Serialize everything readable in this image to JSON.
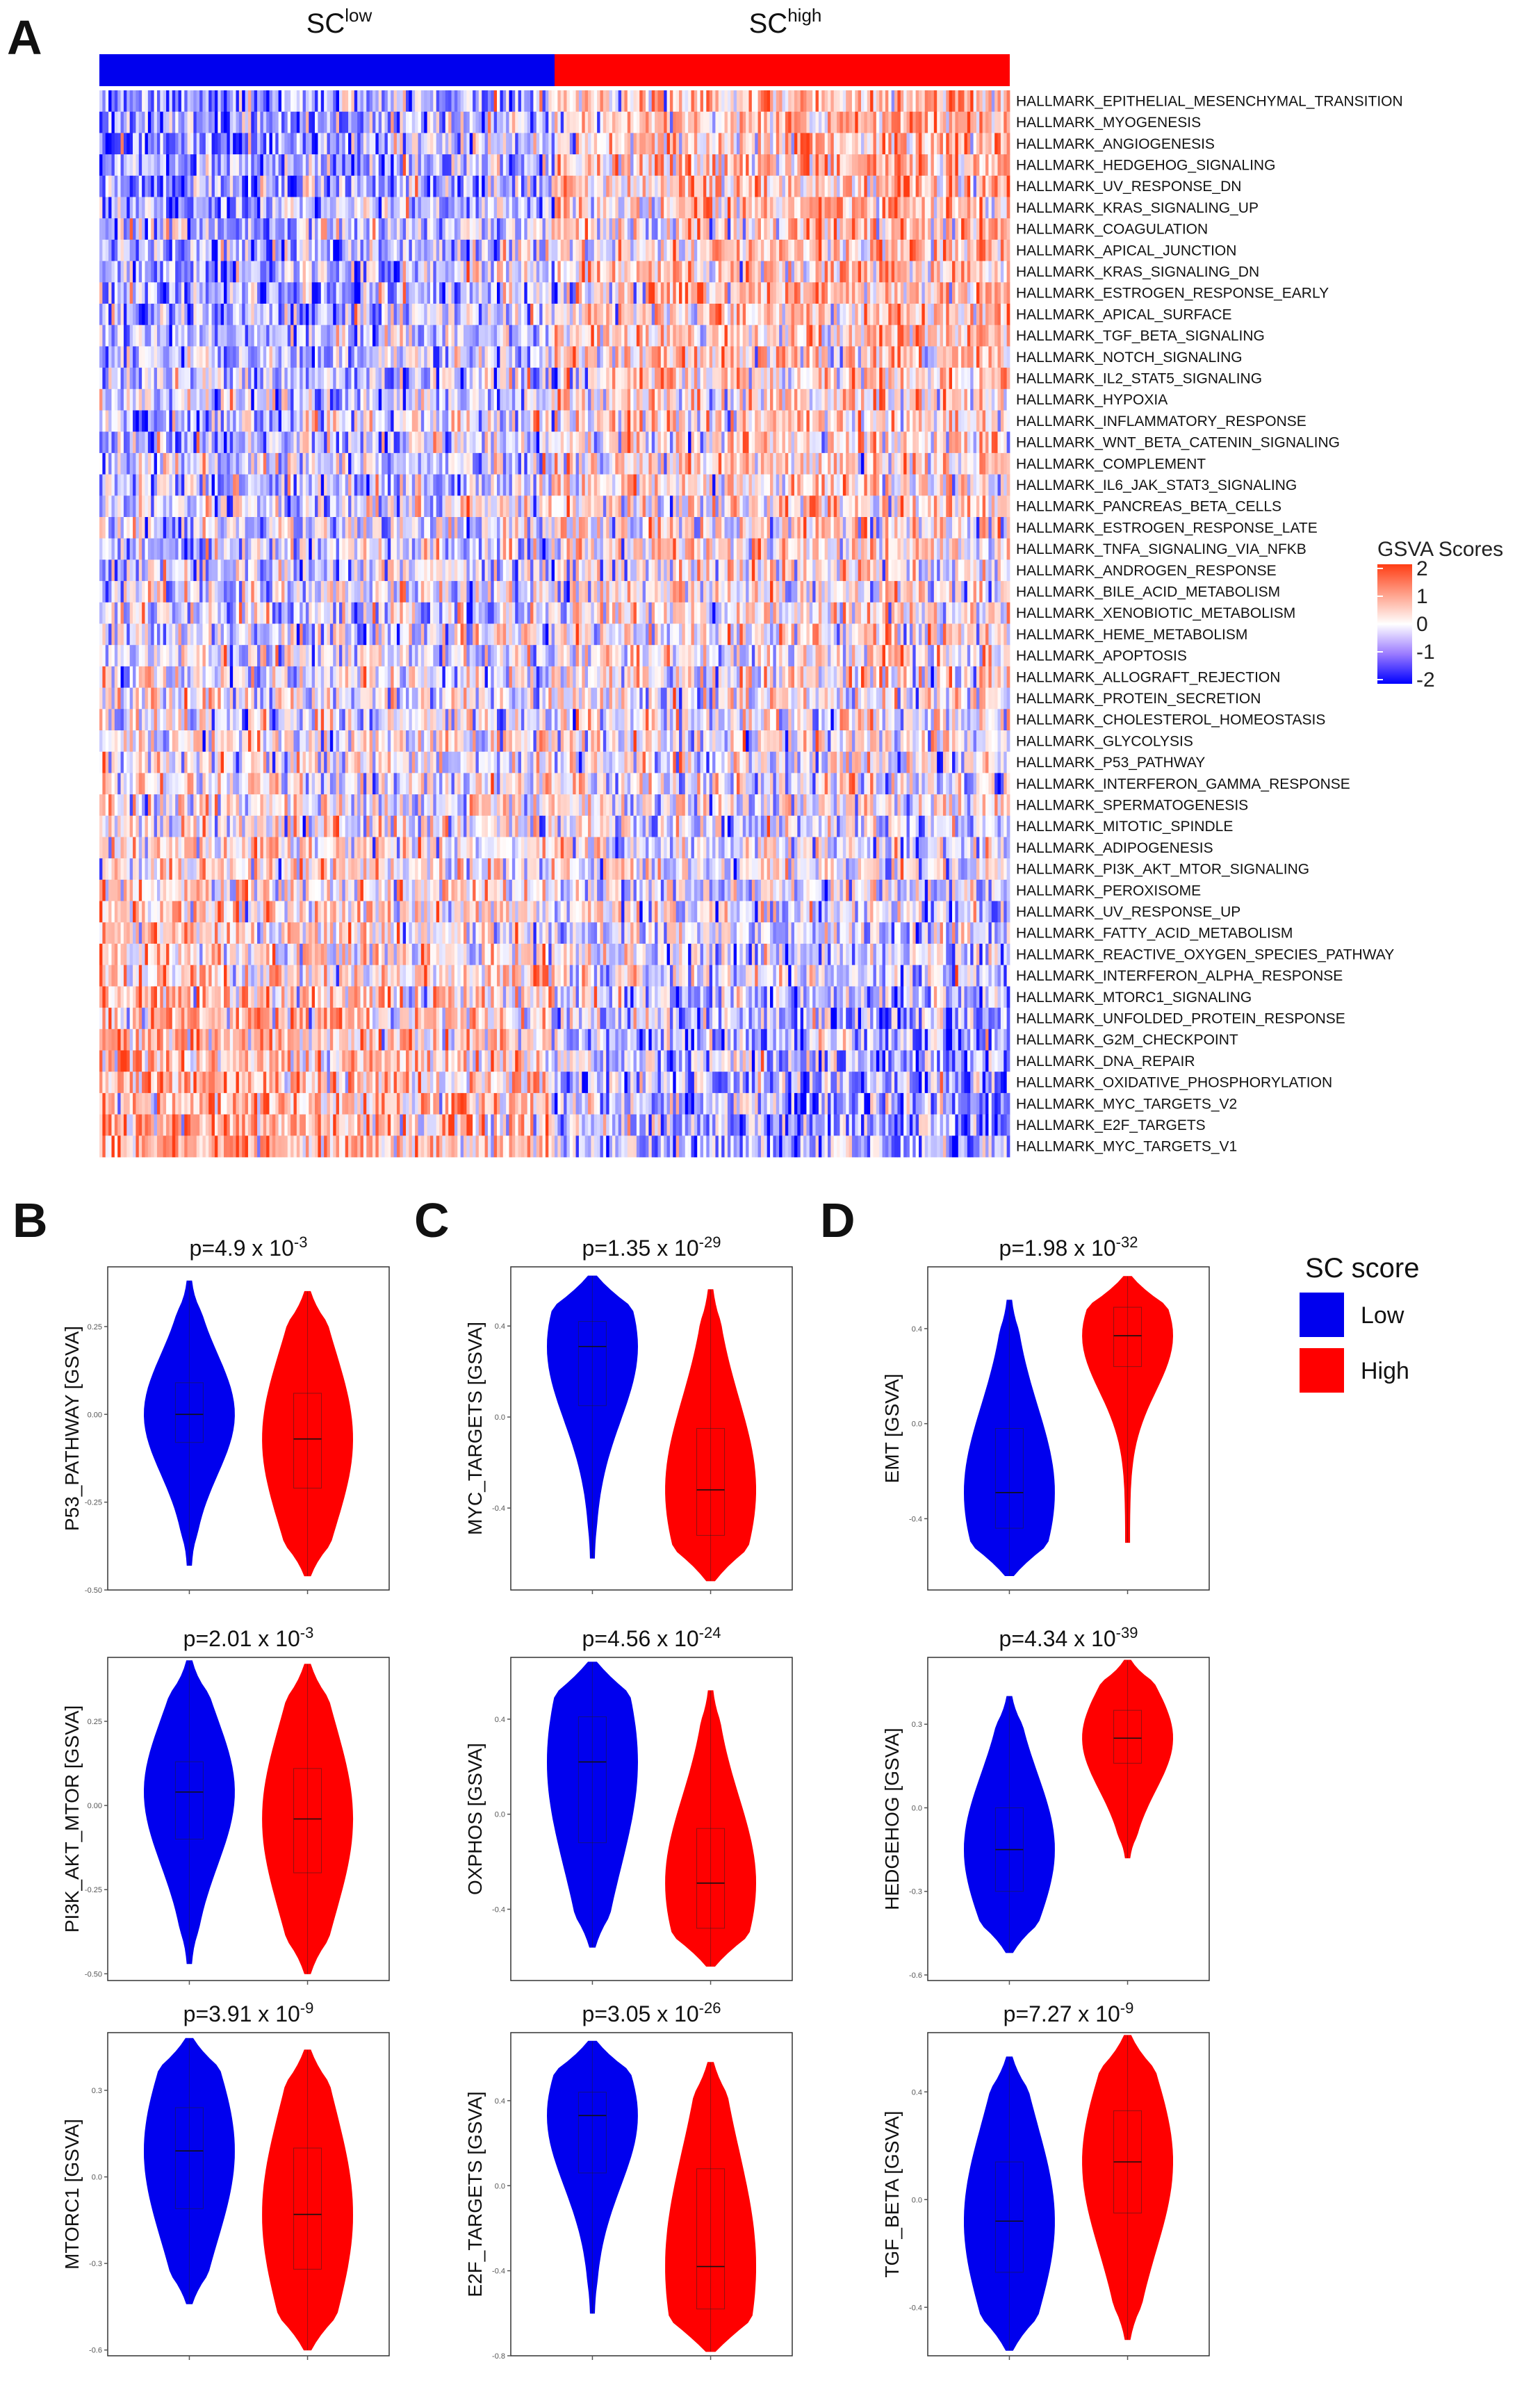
{
  "panels": {
    "a": "A",
    "b": "B",
    "c": "C",
    "d": "D"
  },
  "colors": {
    "low": "#0000ee",
    "high": "#ff0000",
    "heat_low": "#0000ff",
    "heat_mid": "#ffffff",
    "heat_high": "#ff3d14"
  },
  "chart_data": [
    {
      "type": "heatmap",
      "group_labels": [
        {
          "base": "SC",
          "sup": "low"
        },
        {
          "base": "SC",
          "sup": "high"
        }
      ],
      "legend": {
        "title": "GSVA Scores",
        "ticks": [
          "2",
          "1",
          "0",
          "-1",
          "-2"
        ],
        "range": [
          -2,
          2
        ],
        "placement": "right"
      },
      "rows": [
        "HALLMARK_EPITHELIAL_MESENCHYMAL_TRANSITION",
        "HALLMARK_MYOGENESIS",
        "HALLMARK_ANGIOGENESIS",
        "HALLMARK_HEDGEHOG_SIGNALING",
        "HALLMARK_UV_RESPONSE_DN",
        "HALLMARK_KRAS_SIGNALING_UP",
        "HALLMARK_COAGULATION",
        "HALLMARK_APICAL_JUNCTION",
        "HALLMARK_KRAS_SIGNALING_DN",
        "HALLMARK_ESTROGEN_RESPONSE_EARLY",
        "HALLMARK_APICAL_SURFACE",
        "HALLMARK_TGF_BETA_SIGNALING",
        "HALLMARK_NOTCH_SIGNALING",
        "HALLMARK_IL2_STAT5_SIGNALING",
        "HALLMARK_HYPOXIA",
        "HALLMARK_INFLAMMATORY_RESPONSE",
        "HALLMARK_WNT_BETA_CATENIN_SIGNALING",
        "HALLMARK_COMPLEMENT",
        "HALLMARK_IL6_JAK_STAT3_SIGNALING",
        "HALLMARK_PANCREAS_BETA_CELLS",
        "HALLMARK_ESTROGEN_RESPONSE_LATE",
        "HALLMARK_TNFA_SIGNALING_VIA_NFKB",
        "HALLMARK_ANDROGEN_RESPONSE",
        "HALLMARK_BILE_ACID_METABOLISM",
        "HALLMARK_XENOBIOTIC_METABOLISM",
        "HALLMARK_HEME_METABOLISM",
        "HALLMARK_APOPTOSIS",
        "HALLMARK_ALLOGRAFT_REJECTION",
        "HALLMARK_PROTEIN_SECRETION",
        "HALLMARK_CHOLESTEROL_HOMEOSTASIS",
        "HALLMARK_GLYCOLYSIS",
        "HALLMARK_P53_PATHWAY",
        "HALLMARK_INTERFERON_GAMMA_RESPONSE",
        "HALLMARK_SPERMATOGENESIS",
        "HALLMARK_MITOTIC_SPINDLE",
        "HALLMARK_ADIPOGENESIS",
        "HALLMARK_PI3K_AKT_MTOR_SIGNALING",
        "HALLMARK_PEROXISOME",
        "HALLMARK_UV_RESPONSE_UP",
        "HALLMARK_FATTY_ACID_METABOLISM",
        "HALLMARK_REACTIVE_OXYGEN_SPECIES_PATHWAY",
        "HALLMARK_INTERFERON_ALPHA_RESPONSE",
        "HALLMARK_MTORC1_SIGNALING",
        "HALLMARK_UNFOLDED_PROTEIN_RESPONSE",
        "HALLMARK_G2M_CHECKPOINT",
        "HALLMARK_DNA_REPAIR",
        "HALLMARK_OXIDATIVE_PHOSPHORYLATION",
        "HALLMARK_MYC_TARGETS_V2",
        "HALLMARK_E2F_TARGETS",
        "HALLMARK_MYC_TARGETS_V1"
      ],
      "row_mean_difference_high_minus_low": [
        1.6,
        1.5,
        1.5,
        1.45,
        1.4,
        1.35,
        1.3,
        1.25,
        1.2,
        1.15,
        1.1,
        1.05,
        1.0,
        0.95,
        0.9,
        0.85,
        0.8,
        0.75,
        0.7,
        0.65,
        0.6,
        0.55,
        0.5,
        0.45,
        0.4,
        0.3,
        0.25,
        0.2,
        0.15,
        0.1,
        0.05,
        -0.1,
        -0.15,
        -0.2,
        -0.3,
        -0.4,
        -0.5,
        -0.55,
        -0.6,
        -0.65,
        -0.7,
        -0.8,
        -1.1,
        -1.2,
        -1.3,
        -1.4,
        -1.45,
        -1.5,
        -1.55,
        -1.6
      ]
    },
    {
      "type": "violin",
      "legend": {
        "title": "SC score",
        "entries": [
          "Low",
          "High"
        ],
        "placement": "top-right"
      },
      "plots": [
        {
          "id": "p53",
          "title": {
            "base": "p=4.9 x 10",
            "exp": "-3"
          },
          "ylabel": "P53_PATHWAY [GSVA]",
          "ylim": [
            -0.5,
            0.42
          ],
          "ticks": [
            "0.25",
            "0.00",
            "-0.25",
            "-0.50"
          ],
          "tick_values": [
            0.25,
            0.0,
            -0.25,
            -0.5
          ],
          "series": [
            {
              "name": "Low",
              "min": -0.43,
              "max": 0.38,
              "q1": -0.08,
              "median": 0.0,
              "q3": 0.09
            },
            {
              "name": "High",
              "min": -0.46,
              "max": 0.35,
              "q1": -0.21,
              "median": -0.07,
              "q3": 0.06
            }
          ]
        },
        {
          "id": "myc",
          "title": {
            "base": "p=1.35 x 10",
            "exp": "-29"
          },
          "ylabel": "MYC_TARGETS [GSVA]",
          "ylim": [
            -0.76,
            0.66
          ],
          "ticks": [
            "0.4",
            "0.0",
            "-0.4"
          ],
          "tick_values": [
            0.4,
            0.0,
            -0.4
          ],
          "series": [
            {
              "name": "Low",
              "min": -0.62,
              "max": 0.62,
              "q1": 0.05,
              "median": 0.31,
              "q3": 0.42
            },
            {
              "name": "High",
              "min": -0.72,
              "max": 0.56,
              "q1": -0.52,
              "median": -0.32,
              "q3": -0.05
            }
          ]
        },
        {
          "id": "emt",
          "title": {
            "base": "p=1.98 x 10",
            "exp": "-32"
          },
          "ylabel": "EMT [GSVA]",
          "ylim": [
            -0.7,
            0.66
          ],
          "ticks": [
            "0.4",
            "0.0",
            "-0.4"
          ],
          "tick_values": [
            0.4,
            0.0,
            -0.4
          ],
          "series": [
            {
              "name": "Low",
              "min": -0.64,
              "max": 0.52,
              "q1": -0.44,
              "median": -0.29,
              "q3": -0.02
            },
            {
              "name": "High",
              "min": -0.5,
              "max": 0.62,
              "q1": 0.24,
              "median": 0.37,
              "q3": 0.49
            }
          ]
        },
        {
          "id": "pi3k",
          "title": {
            "base": "p=2.01 x 10",
            "exp": "-3"
          },
          "ylabel": "PI3K_AKT_MTOR [GSVA]",
          "ylim": [
            -0.52,
            0.44
          ],
          "ticks": [
            "0.25",
            "0.00",
            "-0.25",
            "-0.50"
          ],
          "tick_values": [
            0.25,
            0.0,
            -0.25,
            -0.5
          ],
          "series": [
            {
              "name": "Low",
              "min": -0.47,
              "max": 0.43,
              "q1": -0.1,
              "median": 0.04,
              "q3": 0.13
            },
            {
              "name": "High",
              "min": -0.5,
              "max": 0.42,
              "q1": -0.2,
              "median": -0.04,
              "q3": 0.11
            }
          ]
        },
        {
          "id": "oxphos",
          "title": {
            "base": "p=4.56 x 10",
            "exp": "-24"
          },
          "ylabel": "OXPHOS [GSVA]",
          "ylim": [
            -0.7,
            0.66
          ],
          "ticks": [
            "0.4",
            "0.0",
            "-0.4"
          ],
          "tick_values": [
            0.4,
            0.0,
            -0.4
          ],
          "series": [
            {
              "name": "Low",
              "min": -0.56,
              "max": 0.64,
              "q1": -0.12,
              "median": 0.22,
              "q3": 0.41
            },
            {
              "name": "High",
              "min": -0.64,
              "max": 0.52,
              "q1": -0.48,
              "median": -0.29,
              "q3": -0.06
            }
          ]
        },
        {
          "id": "hedgehog",
          "title": {
            "base": "p=4.34 x 10",
            "exp": "-39"
          },
          "ylabel": "HEDGEHOG [GSVA]",
          "ylim": [
            -0.62,
            0.54
          ],
          "ticks": [
            "0.3",
            "0.0",
            "-0.3",
            "-0.6"
          ],
          "tick_values": [
            0.3,
            0.0,
            -0.3,
            -0.6
          ],
          "series": [
            {
              "name": "Low",
              "min": -0.52,
              "max": 0.4,
              "q1": -0.3,
              "median": -0.15,
              "q3": 0.0
            },
            {
              "name": "High",
              "min": -0.18,
              "max": 0.53,
              "q1": 0.16,
              "median": 0.25,
              "q3": 0.35
            }
          ]
        },
        {
          "id": "mtorc1",
          "title": {
            "base": "p=3.91 x 10",
            "exp": "-9"
          },
          "ylabel": "MTORC1 [GSVA]",
          "ylim": [
            -0.62,
            0.5
          ],
          "ticks": [
            "0.3",
            "0.0",
            "-0.3",
            "-0.6"
          ],
          "tick_values": [
            0.3,
            0.0,
            -0.3,
            -0.6
          ],
          "series": [
            {
              "name": "Low",
              "min": -0.44,
              "max": 0.48,
              "q1": -0.11,
              "median": 0.09,
              "q3": 0.24
            },
            {
              "name": "High",
              "min": -0.6,
              "max": 0.44,
              "q1": -0.32,
              "median": -0.13,
              "q3": 0.1
            }
          ]
        },
        {
          "id": "e2f",
          "title": {
            "base": "p=3.05 x 10",
            "exp": "-26"
          },
          "ylabel": "E2F_TARGETS [GSVA]",
          "ylim": [
            -0.8,
            0.72
          ],
          "ticks": [
            "0.4",
            "0.0",
            "-0.4",
            "-0.8"
          ],
          "tick_values": [
            0.4,
            0.0,
            -0.4,
            -0.8
          ],
          "series": [
            {
              "name": "Low",
              "min": -0.6,
              "max": 0.68,
              "q1": 0.06,
              "median": 0.33,
              "q3": 0.44
            },
            {
              "name": "High",
              "min": -0.78,
              "max": 0.58,
              "q1": -0.58,
              "median": -0.38,
              "q3": 0.08
            }
          ]
        },
        {
          "id": "tgf",
          "title": {
            "base": "p=7.27 x 10",
            "exp": "-9"
          },
          "ylabel": "TGF_BETA [GSVA]",
          "ylim": [
            -0.58,
            0.62
          ],
          "ticks": [
            "0.4",
            "0.0",
            "-0.4"
          ],
          "tick_values": [
            0.4,
            0.0,
            -0.4
          ],
          "series": [
            {
              "name": "Low",
              "min": -0.56,
              "max": 0.53,
              "q1": -0.27,
              "median": -0.08,
              "q3": 0.14
            },
            {
              "name": "High",
              "min": -0.52,
              "max": 0.61,
              "q1": -0.05,
              "median": 0.14,
              "q3": 0.33
            }
          ]
        }
      ]
    }
  ]
}
